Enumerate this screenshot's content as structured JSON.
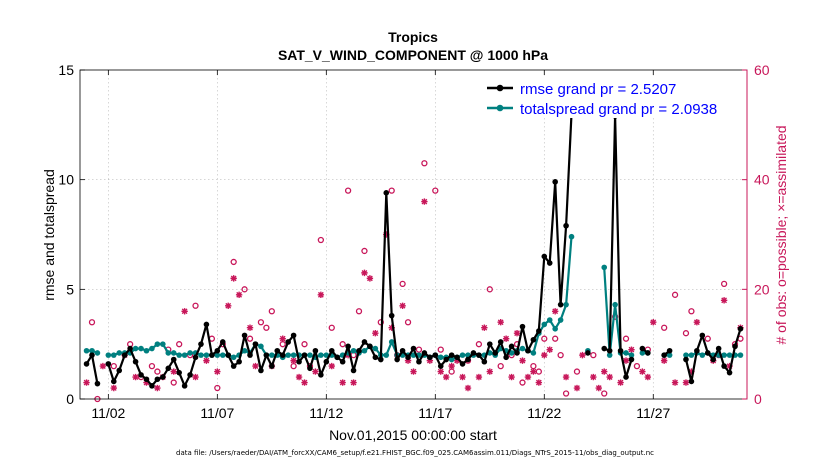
{
  "chart_data": {
    "type": "line",
    "title": "Tropics",
    "subtitle": "SAT_V_WIND_COMPONENT @ 1000 hPa",
    "xlabel": "Nov.01,2015 00:00:00 start",
    "ylabel_left": "rmse and totalspread",
    "ylabel_right": "# of obs: o=possible; ×=assimilated",
    "xlim": [
      0.7,
      31.3
    ],
    "ylim_left": [
      0,
      15
    ],
    "ylim_right": [
      0,
      60
    ],
    "x_ticks": [
      2,
      7,
      12,
      17,
      22,
      27
    ],
    "x_tick_labels": [
      "11/02",
      "11/07",
      "11/12",
      "11/17",
      "11/22",
      "11/27"
    ],
    "y_left_ticks": [
      0,
      5,
      10,
      15
    ],
    "y_right_ticks": [
      0,
      20,
      40,
      60
    ],
    "grid": true,
    "legend_position": "top-right",
    "colors": {
      "rmse": "#000000",
      "totalspread": "#008080",
      "right_axis": "#c8175a",
      "legend_text": "#0000ff"
    },
    "x": [
      1.0,
      1.25,
      1.5,
      1.75,
      2.0,
      2.25,
      2.5,
      2.75,
      3.0,
      3.25,
      3.5,
      3.75,
      4.0,
      4.25,
      4.5,
      4.75,
      5.0,
      5.25,
      5.5,
      5.75,
      6.0,
      6.25,
      6.5,
      6.75,
      7.0,
      7.25,
      7.5,
      7.75,
      8.0,
      8.25,
      8.5,
      8.75,
      9.0,
      9.25,
      9.5,
      9.75,
      10.0,
      10.25,
      10.5,
      10.75,
      11.0,
      11.25,
      11.5,
      11.75,
      12.0,
      12.25,
      12.5,
      12.75,
      13.0,
      13.25,
      13.5,
      13.75,
      14.0,
      14.25,
      14.5,
      14.75,
      15.0,
      15.25,
      15.5,
      15.75,
      16.0,
      16.25,
      16.5,
      16.75,
      17.0,
      17.25,
      17.5,
      17.75,
      18.0,
      18.25,
      18.5,
      18.75,
      19.0,
      19.25,
      19.5,
      19.75,
      20.0,
      20.25,
      20.5,
      20.75,
      21.0,
      21.25,
      21.5,
      21.75,
      22.0,
      22.25,
      22.5,
      22.75,
      23.0,
      23.25,
      23.5,
      23.75,
      24.0,
      24.25,
      24.5,
      24.75,
      25.0,
      25.25,
      25.5,
      25.75,
      26.0,
      26.25,
      26.5,
      26.75,
      27.0,
      27.25,
      27.5,
      27.75,
      28.0,
      28.25,
      28.5,
      28.75,
      29.0,
      29.25,
      29.5,
      29.75,
      30.0,
      30.25,
      30.5,
      30.75,
      31.0
    ],
    "series": [
      {
        "name": "rmse grand pr = 2.5207",
        "values": [
          1.6,
          2.0,
          0.7,
          null,
          1.6,
          0.8,
          1.3,
          2.0,
          2.3,
          1.7,
          1.1,
          0.9,
          0.6,
          0.9,
          1.0,
          1.4,
          1.8,
          1.2,
          0.6,
          1.1,
          1.9,
          2.5,
          3.4,
          2.0,
          2.2,
          2.6,
          2.0,
          1.5,
          1.7,
          2.9,
          2.0,
          2.5,
          1.3,
          2.0,
          1.5,
          2.2,
          2.0,
          2.6,
          2.9,
          1.7,
          2.0,
          1.4,
          2.2,
          1.1,
          1.7,
          2.2,
          1.9,
          1.7,
          2.4,
          1.3,
          2.2,
          2.6,
          2.4,
          1.9,
          1.8,
          9.4,
          3.8,
          1.8,
          2.2,
          1.9,
          2.3,
          1.7,
          2.1,
          1.9,
          2.0,
          1.5,
          1.8,
          2.0,
          1.9,
          1.6,
          1.8,
          2.1,
          2.0,
          1.7,
          2.5,
          2.1,
          2.6,
          1.9,
          2.4,
          2.1,
          3.3,
          2.2,
          2.7,
          3.1,
          6.5,
          6.2,
          9.9,
          4.3,
          7.9,
          13.0,
          null,
          null,
          2.1,
          null,
          null,
          2.3,
          2.2,
          12.9,
          2.2,
          1.0,
          1.8,
          null,
          2.3,
          2.1,
          null,
          null,
          2.0,
          2.2,
          null,
          null,
          1.8,
          0.8,
          2.2,
          2.9,
          2.1,
          1.8,
          2.3,
          1.5,
          1.2,
          2.4,
          3.2
        ],
        "color": "#000000"
      },
      {
        "name": "totalspread grand pr = 2.0938",
        "values": [
          2.2,
          2.2,
          2.1,
          null,
          2.0,
          2.0,
          2.1,
          2.1,
          2.1,
          2.3,
          2.3,
          2.2,
          2.3,
          2.5,
          2.5,
          2.1,
          2.1,
          2.0,
          2.0,
          2.1,
          2.1,
          2.0,
          2.0,
          2.0,
          2.0,
          2.0,
          2.0,
          1.9,
          2.0,
          2.2,
          2.1,
          2.5,
          2.4,
          2.0,
          2.0,
          2.0,
          1.9,
          2.0,
          2.0,
          2.0,
          2.0,
          2.0,
          1.9,
          2.0,
          2.0,
          2.0,
          1.9,
          2.0,
          2.1,
          2.2,
          2.1,
          2.2,
          2.4,
          2.3,
          2.0,
          2.0,
          2.6,
          2.0,
          2.0,
          2.0,
          2.0,
          2.0,
          2.0,
          1.9,
          2.0,
          1.9,
          1.9,
          1.8,
          1.9,
          2.0,
          2.0,
          2.0,
          2.0,
          2.0,
          2.1,
          2.0,
          2.3,
          2.2,
          2.1,
          2.2,
          2.3,
          2.2,
          2.1,
          3.0,
          3.4,
          3.6,
          3.2,
          3.6,
          4.3,
          7.4,
          null,
          null,
          2.2,
          null,
          null,
          6.0,
          2.0,
          4.3,
          2.1,
          2.1,
          2.0,
          null,
          2.1,
          2.1,
          null,
          null,
          2.0,
          2.0,
          null,
          null,
          2.0,
          2.0,
          2.1,
          2.0,
          2.1,
          2.0,
          2.0,
          2.0,
          2.0,
          2.0,
          2.0
        ],
        "color": "#008080"
      }
    ],
    "obs_possible": [
      [
        1.25,
        14
      ],
      [
        1.5,
        0
      ],
      [
        2.25,
        6
      ],
      [
        3.0,
        10
      ],
      [
        3.5,
        4
      ],
      [
        4.0,
        6
      ],
      [
        4.25,
        5
      ],
      [
        4.75,
        9
      ],
      [
        5.0,
        3
      ],
      [
        5.25,
        10
      ],
      [
        5.75,
        8
      ],
      [
        6.0,
        17
      ],
      [
        6.75,
        11
      ],
      [
        7.0,
        2
      ],
      [
        7.25,
        10
      ],
      [
        7.75,
        25
      ],
      [
        8.25,
        20
      ],
      [
        8.5,
        11
      ],
      [
        9.0,
        14
      ],
      [
        9.25,
        13
      ],
      [
        9.5,
        16
      ],
      [
        10.0,
        10
      ],
      [
        10.5,
        6
      ],
      [
        11.0,
        10
      ],
      [
        11.25,
        6
      ],
      [
        11.75,
        29
      ],
      [
        12.25,
        13
      ],
      [
        12.75,
        10
      ],
      [
        13.0,
        38
      ],
      [
        13.25,
        8
      ],
      [
        13.5,
        16
      ],
      [
        13.75,
        27
      ],
      [
        14.5,
        14
      ],
      [
        15.0,
        38
      ],
      [
        15.25,
        8
      ],
      [
        15.5,
        21
      ],
      [
        15.75,
        14
      ],
      [
        16.25,
        9
      ],
      [
        16.5,
        43
      ],
      [
        17.0,
        38
      ],
      [
        17.25,
        9
      ],
      [
        17.75,
        5
      ],
      [
        18.5,
        7
      ],
      [
        19.0,
        10
      ],
      [
        19.5,
        20
      ],
      [
        20.0,
        6
      ],
      [
        20.5,
        8
      ],
      [
        20.75,
        10
      ],
      [
        21.0,
        3
      ],
      [
        21.5,
        6
      ],
      [
        21.75,
        5
      ],
      [
        22.0,
        11
      ],
      [
        22.5,
        11
      ],
      [
        22.75,
        8
      ],
      [
        23.0,
        1
      ],
      [
        23.5,
        5
      ],
      [
        24.25,
        8
      ],
      [
        24.75,
        1
      ],
      [
        25.25,
        15
      ],
      [
        25.75,
        11
      ],
      [
        26.25,
        6
      ],
      [
        26.75,
        9
      ],
      [
        27.5,
        13
      ],
      [
        28.0,
        19
      ],
      [
        28.5,
        12
      ],
      [
        28.75,
        16
      ],
      [
        29.5,
        11
      ],
      [
        30.0,
        8
      ],
      [
        30.25,
        21
      ],
      [
        30.75,
        10
      ],
      [
        31.0,
        11
      ]
    ],
    "obs_assimilated": [
      [
        1.0,
        3
      ],
      [
        1.75,
        6
      ],
      [
        2.25,
        2
      ],
      [
        2.75,
        8
      ],
      [
        3.25,
        4
      ],
      [
        3.75,
        3
      ],
      [
        4.25,
        2
      ],
      [
        4.5,
        4
      ],
      [
        5.0,
        5
      ],
      [
        5.5,
        16
      ],
      [
        6.0,
        4
      ],
      [
        6.5,
        7
      ],
      [
        7.0,
        5
      ],
      [
        7.5,
        17
      ],
      [
        7.75,
        22
      ],
      [
        8.0,
        19
      ],
      [
        8.5,
        13
      ],
      [
        8.75,
        6
      ],
      [
        9.5,
        6
      ],
      [
        10.0,
        11
      ],
      [
        10.5,
        7
      ],
      [
        10.75,
        4
      ],
      [
        11.0,
        3
      ],
      [
        11.5,
        5
      ],
      [
        11.75,
        19
      ],
      [
        12.25,
        6
      ],
      [
        12.75,
        3
      ],
      [
        13.0,
        8
      ],
      [
        13.25,
        3
      ],
      [
        13.75,
        23
      ],
      [
        14.0,
        22
      ],
      [
        14.25,
        12
      ],
      [
        14.75,
        30
      ],
      [
        15.0,
        13
      ],
      [
        15.5,
        17
      ],
      [
        15.75,
        7
      ],
      [
        16.0,
        5
      ],
      [
        16.5,
        36
      ],
      [
        16.75,
        7
      ],
      [
        17.25,
        5
      ],
      [
        17.5,
        4
      ],
      [
        17.75,
        6
      ],
      [
        18.0,
        7
      ],
      [
        18.25,
        4
      ],
      [
        18.5,
        2
      ],
      [
        19.0,
        4
      ],
      [
        19.25,
        13
      ],
      [
        19.5,
        5
      ],
      [
        20.0,
        14
      ],
      [
        20.25,
        11
      ],
      [
        20.5,
        4
      ],
      [
        20.75,
        12
      ],
      [
        21.0,
        7
      ],
      [
        21.25,
        4
      ],
      [
        21.5,
        5
      ],
      [
        21.75,
        3
      ],
      [
        22.0,
        8
      ],
      [
        22.25,
        9
      ],
      [
        22.5,
        16
      ],
      [
        23.0,
        4
      ],
      [
        23.5,
        2
      ],
      [
        23.75,
        8
      ],
      [
        24.25,
        4
      ],
      [
        24.5,
        2
      ],
      [
        24.75,
        5
      ],
      [
        25.0,
        4
      ],
      [
        25.5,
        3
      ],
      [
        25.75,
        7
      ],
      [
        26.0,
        9
      ],
      [
        26.5,
        5
      ],
      [
        26.75,
        4
      ],
      [
        27.0,
        14
      ],
      [
        27.5,
        7
      ],
      [
        28.0,
        3
      ],
      [
        28.5,
        3
      ],
      [
        28.75,
        5
      ],
      [
        29.0,
        14
      ],
      [
        29.75,
        7
      ],
      [
        30.25,
        18
      ],
      [
        30.5,
        6
      ],
      [
        31.0,
        13
      ]
    ]
  },
  "footer": "data file: /Users/raeder/DAI/ATM_forcXX/CAM6_setup/f.e21.FHIST_BGC.f09_025.CAM6assim.011/Diags_NTrS_2015-11/obs_diag_output.nc"
}
